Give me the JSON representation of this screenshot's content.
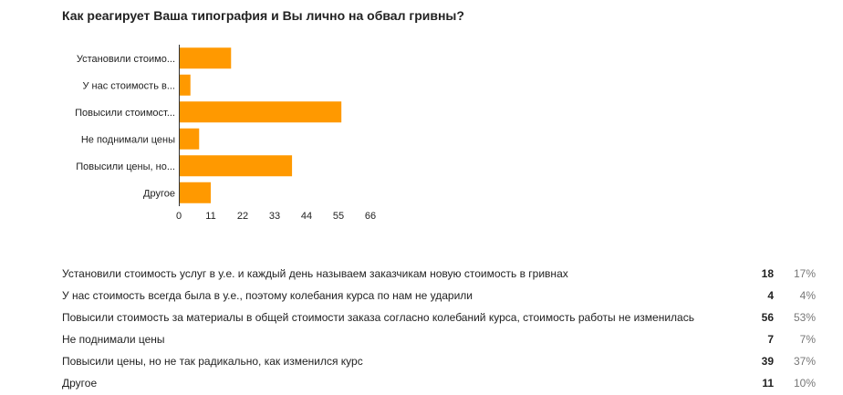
{
  "title": "Как реагирует Ваша типография и Вы лично на обвал гривны?",
  "chart_data": {
    "type": "bar",
    "orientation": "horizontal",
    "categories": [
      "Установили стоимо...",
      "У нас стоимость в...",
      "Повысили стоимост...",
      "Не поднимали цены",
      "Повысили цены, но...",
      "Другое"
    ],
    "values": [
      18,
      4,
      56,
      7,
      39,
      11
    ],
    "xticks": [
      0,
      11,
      22,
      33,
      44,
      55,
      66
    ],
    "xlim": [
      0,
      66
    ],
    "title": "",
    "xlabel": "",
    "ylabel": "",
    "grid": false,
    "bar_color": "#ff9900"
  },
  "table": {
    "rows": [
      {
        "label": "Установили стоимость услуг в у.е. и каждый день называем заказчикам новую стоимость в гривнах",
        "count": "18",
        "percent": "17%"
      },
      {
        "label": "У нас стоимость всегда была в у.е., поэтому колебания курса по нам не ударили",
        "count": "4",
        "percent": "4%"
      },
      {
        "label": "Повысили стоимость за материалы в общей стоимости заказа согласно колебаний курса, стоимость работы не изменилась",
        "count": "56",
        "percent": "53%"
      },
      {
        "label": "Не поднимали цены",
        "count": "7",
        "percent": "7%"
      },
      {
        "label": "Повысили цены, но не так радикально, как изменился курс",
        "count": "39",
        "percent": "37%"
      },
      {
        "label": "Другое",
        "count": "11",
        "percent": "10%"
      }
    ]
  }
}
